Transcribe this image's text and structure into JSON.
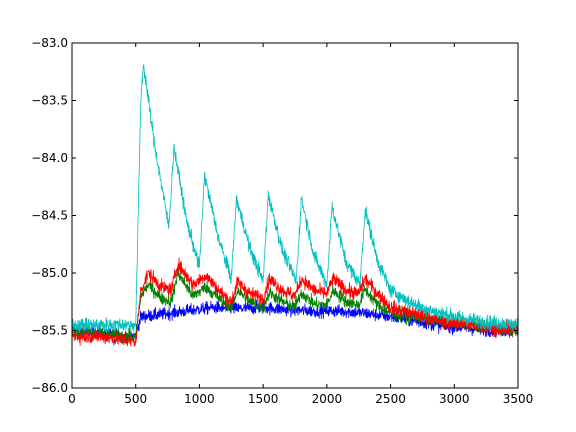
{
  "chart_data": {
    "type": "line",
    "title": "",
    "xlabel": "",
    "ylabel": "",
    "xlim": [
      0,
      3500
    ],
    "ylim": [
      -86.0,
      -83.0
    ],
    "xticks": [
      0,
      500,
      1000,
      1500,
      2000,
      2500,
      3000,
      3500
    ],
    "xtick_labels": [
      "0",
      "500",
      "1000",
      "1500",
      "2000",
      "2500",
      "3000",
      "3500"
    ],
    "yticks": [
      -86.0,
      -85.5,
      -85.0,
      -84.5,
      -84.0,
      -83.5,
      -83.0
    ],
    "ytick_labels": [
      "−86.0",
      "−85.5",
      "−85.0",
      "−84.5",
      "−84.0",
      "−83.5",
      "−83.0"
    ],
    "grid": false,
    "legend": "none",
    "series": [
      {
        "color": "#0000ff",
        "noise": 0.045,
        "x": [
          0,
          200,
          400,
          500,
          540,
          700,
          900,
          1100,
          1300,
          1500,
          1700,
          1900,
          2100,
          2300,
          2500,
          2700,
          2900,
          3100,
          3300,
          3500
        ],
        "y": [
          -85.5,
          -85.52,
          -85.55,
          -85.55,
          -85.38,
          -85.36,
          -85.33,
          -85.3,
          -85.31,
          -85.3,
          -85.32,
          -85.33,
          -85.33,
          -85.35,
          -85.38,
          -85.42,
          -85.46,
          -85.48,
          -85.5,
          -85.5
        ]
      },
      {
        "color": "#007f00",
        "noise": 0.045,
        "x": [
          0,
          200,
          400,
          500,
          540,
          600,
          700,
          780,
          830,
          950,
          1050,
          1150,
          1250,
          1300,
          1400,
          1500,
          1550,
          1650,
          1750,
          1800,
          1900,
          2000,
          2050,
          2150,
          2250,
          2300,
          2400,
          2500,
          2700,
          2900,
          3100,
          3300,
          3500
        ],
        "y": [
          -85.5,
          -85.52,
          -85.55,
          -85.56,
          -85.2,
          -85.1,
          -85.22,
          -85.25,
          -85.0,
          -85.2,
          -85.12,
          -85.22,
          -85.3,
          -85.15,
          -85.25,
          -85.3,
          -85.17,
          -85.25,
          -85.3,
          -85.17,
          -85.27,
          -85.28,
          -85.15,
          -85.25,
          -85.28,
          -85.14,
          -85.28,
          -85.35,
          -85.38,
          -85.42,
          -85.45,
          -85.48,
          -85.5
        ]
      },
      {
        "color": "#ff0000",
        "noise": 0.05,
        "x": [
          0,
          200,
          400,
          500,
          540,
          600,
          700,
          780,
          830,
          950,
          1050,
          1150,
          1250,
          1300,
          1400,
          1500,
          1550,
          1650,
          1750,
          1800,
          1900,
          2000,
          2050,
          2150,
          2250,
          2300,
          2400,
          2500,
          2700,
          2900,
          3100,
          3300,
          3500
        ],
        "y": [
          -85.55,
          -85.55,
          -85.58,
          -85.6,
          -85.15,
          -85.0,
          -85.12,
          -85.15,
          -84.92,
          -85.1,
          -85.02,
          -85.15,
          -85.25,
          -85.08,
          -85.18,
          -85.22,
          -85.05,
          -85.15,
          -85.2,
          -85.05,
          -85.15,
          -85.18,
          -85.05,
          -85.15,
          -85.18,
          -85.05,
          -85.18,
          -85.3,
          -85.36,
          -85.42,
          -85.45,
          -85.48,
          -85.5
        ]
      },
      {
        "color": "#00bfbf",
        "noise": 0.05,
        "x": [
          0,
          200,
          400,
          500,
          540,
          560,
          650,
          760,
          800,
          900,
          1000,
          1040,
          1150,
          1250,
          1290,
          1400,
          1500,
          1540,
          1650,
          1760,
          1800,
          1900,
          2000,
          2040,
          2150,
          2260,
          2300,
          2400,
          2500,
          2600,
          2700,
          2800,
          2900,
          3000,
          3100,
          3200,
          3300,
          3400,
          3500
        ],
        "y": [
          -85.45,
          -85.45,
          -85.45,
          -85.45,
          -83.5,
          -83.18,
          -83.9,
          -84.6,
          -83.9,
          -84.55,
          -84.95,
          -84.15,
          -84.7,
          -85.05,
          -84.35,
          -84.8,
          -85.07,
          -84.32,
          -84.8,
          -85.07,
          -84.35,
          -84.85,
          -85.1,
          -84.42,
          -84.9,
          -85.1,
          -84.45,
          -84.9,
          -85.15,
          -85.22,
          -85.28,
          -85.32,
          -85.35,
          -85.38,
          -85.4,
          -85.42,
          -85.43,
          -85.44,
          -85.45
        ]
      }
    ]
  }
}
